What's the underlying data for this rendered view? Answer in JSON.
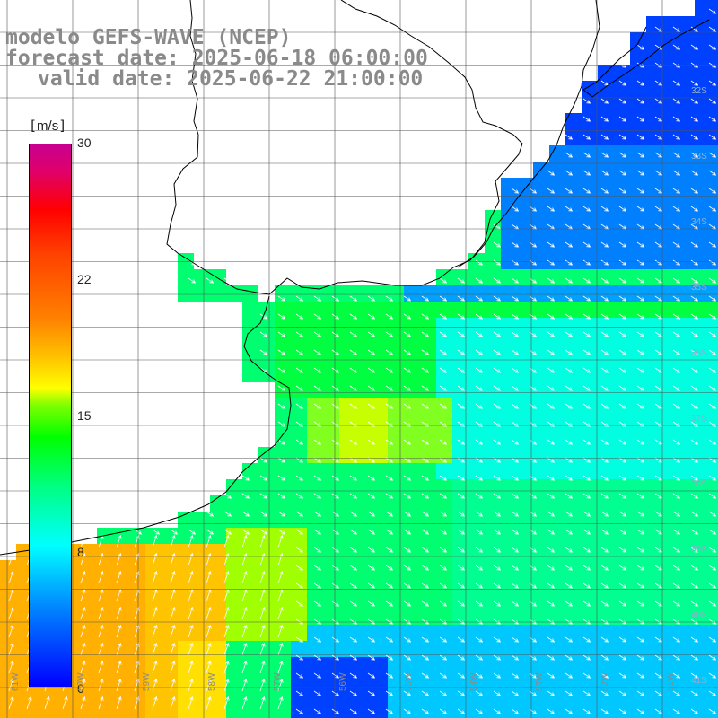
{
  "title": {
    "line1": "modelo GEFS-WAVE (NCEP)",
    "line2": "forecast date: 2025-06-18 06:00:00",
    "line3": "valid date: 2025-06-22 21:00:00"
  },
  "colorbar": {
    "unit_open": "[",
    "unit": "m/s",
    "unit_close": "]",
    "ticks": [
      "30",
      "22",
      "15",
      "8",
      "0"
    ],
    "range": [
      0,
      30
    ],
    "colors": [
      "#0000ff",
      "#0080ff",
      "#00ffff",
      "#00ff80",
      "#00ff00",
      "#ffff00",
      "#ff8000",
      "#ff0000",
      "#c80090"
    ]
  },
  "map": {
    "latitude_labels": [
      "32S",
      "33S",
      "34S",
      "35S",
      "36S",
      "37S",
      "38S",
      "39S",
      "40S",
      "41S"
    ],
    "longitude_labels": [
      "61W",
      "60W",
      "59W",
      "58W",
      "57W",
      "56W",
      "55W",
      "54W",
      "53W",
      "52W",
      "51W",
      "50W"
    ],
    "grid_lines": true,
    "land_color": "#ffffff",
    "coastline_color": "#000000",
    "vector_color": "#ffffff"
  }
}
